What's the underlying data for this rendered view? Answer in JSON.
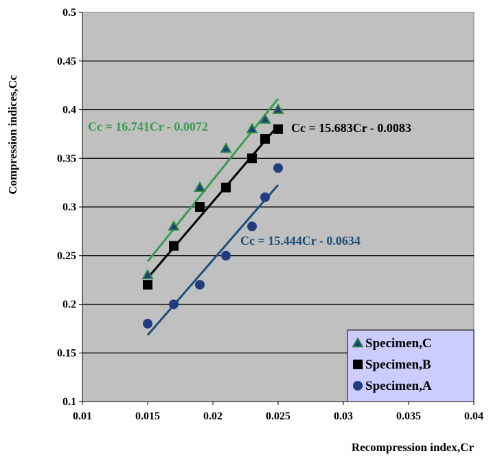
{
  "chart_data": {
    "type": "scatter",
    "xlabel": "Recompression index,Cr",
    "ylabel": "Compression indices,Cc",
    "xlim": [
      0.01,
      0.04
    ],
    "ylim": [
      0.1,
      0.5
    ],
    "xticks": [
      0.01,
      0.015,
      0.02,
      0.025,
      0.03,
      0.035,
      0.04
    ],
    "yticks": [
      0.1,
      0.15,
      0.2,
      0.25,
      0.3,
      0.35,
      0.4,
      0.45,
      0.5
    ],
    "xtick_labels": [
      "0.01",
      "0.015",
      "0.02",
      "0.025",
      "0.03",
      "0.035",
      "0.04"
    ],
    "ytick_labels": [
      "0.1",
      "0.15",
      "0.2",
      "0.25",
      "0.3",
      "0.35",
      "0.4",
      "0.45",
      "0.5"
    ],
    "grid": "horizontal",
    "background": "#c0c0c0",
    "legend_position": "bottom-right",
    "series": [
      {
        "name": "Specimen,C",
        "marker": "triangle",
        "color": "#2e8b3e",
        "fill": "#1f3d80",
        "x": [
          0.015,
          0.017,
          0.019,
          0.021,
          0.023,
          0.024,
          0.025
        ],
        "y": [
          0.23,
          0.28,
          0.32,
          0.36,
          0.38,
          0.39,
          0.4
        ],
        "trendline": {
          "slope": 16.741,
          "intercept": -0.0072,
          "equation": "Cc = 16.741Cr - 0.0072",
          "color": "#3a9a50"
        }
      },
      {
        "name": "Specimen,B",
        "marker": "square",
        "color": "#000000",
        "x": [
          0.015,
          0.017,
          0.019,
          0.021,
          0.023,
          0.024,
          0.025
        ],
        "y": [
          0.22,
          0.26,
          0.3,
          0.32,
          0.35,
          0.37,
          0.38
        ],
        "trendline": {
          "slope": 15.683,
          "intercept": -0.0083,
          "equation": "Cc = 15.683Cr - 0.0083",
          "color": "#000000"
        }
      },
      {
        "name": "Specimen,A",
        "marker": "circle",
        "color": "#1f3d80",
        "x": [
          0.015,
          0.017,
          0.019,
          0.021,
          0.023,
          0.024,
          0.025
        ],
        "y": [
          0.18,
          0.2,
          0.22,
          0.25,
          0.28,
          0.31,
          0.34
        ],
        "trendline": {
          "slope": 15.444,
          "intercept": -0.0634,
          "equation": "Cc = 15.444Cr - 0.0634",
          "color": "#1f4e79"
        }
      }
    ]
  }
}
